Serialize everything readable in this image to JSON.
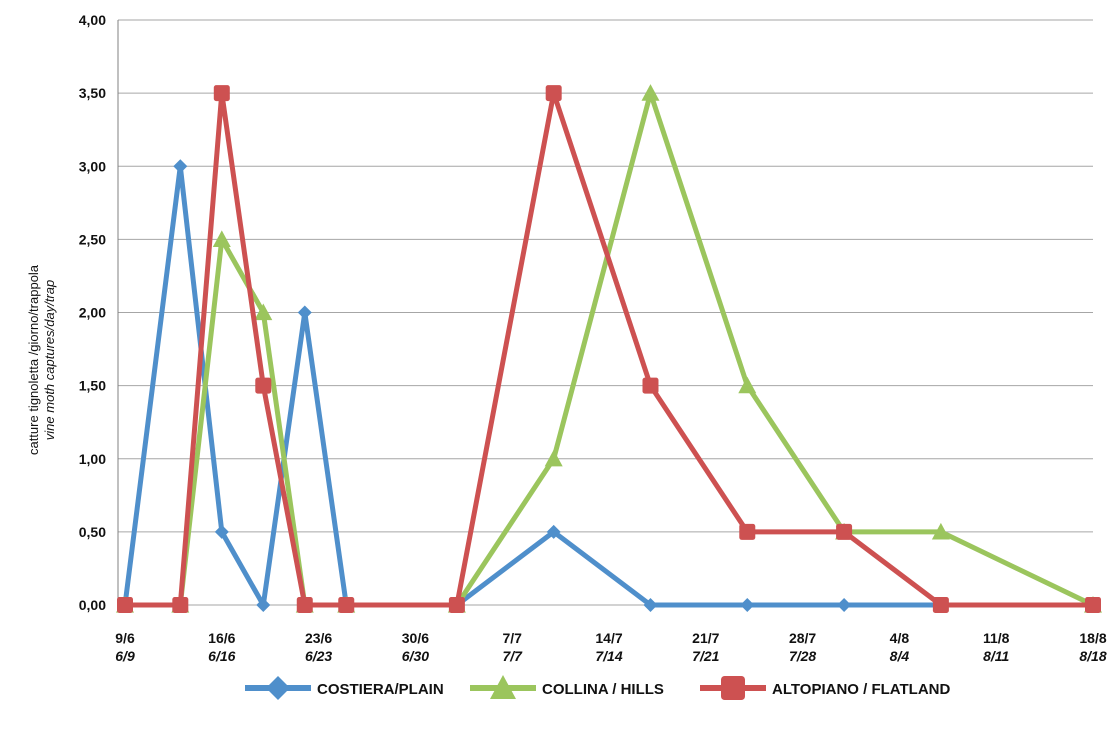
{
  "chart_data": {
    "type": "line",
    "title": "",
    "ylabel_line1": "catture tignoletta /giorno/trappola",
    "ylabel_line2": "vine moth captures/day/trap",
    "ylim": [
      0,
      4
    ],
    "yticks": [
      "0,00",
      "0,50",
      "1,00",
      "1,50",
      "2,00",
      "2,50",
      "3,00",
      "3,50",
      "4,00"
    ],
    "x_range": [
      "2024-06-09",
      "2024-08-18"
    ],
    "xticks": [
      {
        "date": "2024-06-09",
        "label1": "9/6",
        "label2": "6/9"
      },
      {
        "date": "2024-06-16",
        "label1": "16/6",
        "label2": "6/16"
      },
      {
        "date": "2024-06-23",
        "label1": "23/6",
        "label2": "6/23"
      },
      {
        "date": "2024-06-30",
        "label1": "30/6",
        "label2": "6/30"
      },
      {
        "date": "2024-07-07",
        "label1": "7/7",
        "label2": "7/7"
      },
      {
        "date": "2024-07-14",
        "label1": "14/7",
        "label2": "7/14"
      },
      {
        "date": "2024-07-21",
        "label1": "21/7",
        "label2": "7/21"
      },
      {
        "date": "2024-07-28",
        "label1": "28/7",
        "label2": "7/28"
      },
      {
        "date": "2024-08-04",
        "label1": "4/8",
        "label2": "8/4"
      },
      {
        "date": "2024-08-11",
        "label1": "11/8",
        "label2": "8/11"
      },
      {
        "date": "2024-08-18",
        "label1": "18/8",
        "label2": "8/18"
      }
    ],
    "grid": "horizontal",
    "legend_position": "bottom",
    "series": [
      {
        "name": "COSTIERA/PLAIN",
        "color": "#4f8fcb",
        "marker": "diamond",
        "points": [
          {
            "x": "2024-06-09",
            "y": 0
          },
          {
            "x": "2024-06-13",
            "y": 3.0
          },
          {
            "x": "2024-06-16",
            "y": 0.5
          },
          {
            "x": "2024-06-19",
            "y": 0
          },
          {
            "x": "2024-06-22",
            "y": 2.0
          },
          {
            "x": "2024-06-25",
            "y": 0
          },
          {
            "x": "2024-07-03",
            "y": 0
          },
          {
            "x": "2024-07-10",
            "y": 0.5
          },
          {
            "x": "2024-07-17",
            "y": 0
          },
          {
            "x": "2024-07-24",
            "y": 0
          },
          {
            "x": "2024-07-31",
            "y": 0
          },
          {
            "x": "2024-08-07",
            "y": 0
          },
          {
            "x": "2024-08-18",
            "y": 0
          }
        ]
      },
      {
        "name": "COLLINA / HILLS",
        "color": "#9bc55d",
        "marker": "triangle",
        "points": [
          {
            "x": "2024-06-09",
            "y": 0
          },
          {
            "x": "2024-06-13",
            "y": 0
          },
          {
            "x": "2024-06-16",
            "y": 2.5
          },
          {
            "x": "2024-06-19",
            "y": 2.0
          },
          {
            "x": "2024-06-22",
            "y": 0
          },
          {
            "x": "2024-06-25",
            "y": 0
          },
          {
            "x": "2024-07-03",
            "y": 0
          },
          {
            "x": "2024-07-10",
            "y": 1.0
          },
          {
            "x": "2024-07-17",
            "y": 3.5
          },
          {
            "x": "2024-07-24",
            "y": 1.5
          },
          {
            "x": "2024-07-31",
            "y": 0.5
          },
          {
            "x": "2024-08-07",
            "y": 0.5
          },
          {
            "x": "2024-08-18",
            "y": 0
          }
        ]
      },
      {
        "name": "ALTOPIANO / FLATLAND",
        "color": "#cd5151",
        "marker": "square",
        "points": [
          {
            "x": "2024-06-09",
            "y": 0
          },
          {
            "x": "2024-06-13",
            "y": 0
          },
          {
            "x": "2024-06-16",
            "y": 3.5
          },
          {
            "x": "2024-06-19",
            "y": 1.5
          },
          {
            "x": "2024-06-22",
            "y": 0
          },
          {
            "x": "2024-06-25",
            "y": 0
          },
          {
            "x": "2024-07-03",
            "y": 0
          },
          {
            "x": "2024-07-10",
            "y": 3.5
          },
          {
            "x": "2024-07-17",
            "y": 1.5
          },
          {
            "x": "2024-07-24",
            "y": 0.5
          },
          {
            "x": "2024-07-31",
            "y": 0.5
          },
          {
            "x": "2024-08-07",
            "y": 0
          },
          {
            "x": "2024-08-18",
            "y": 0
          }
        ]
      }
    ]
  }
}
